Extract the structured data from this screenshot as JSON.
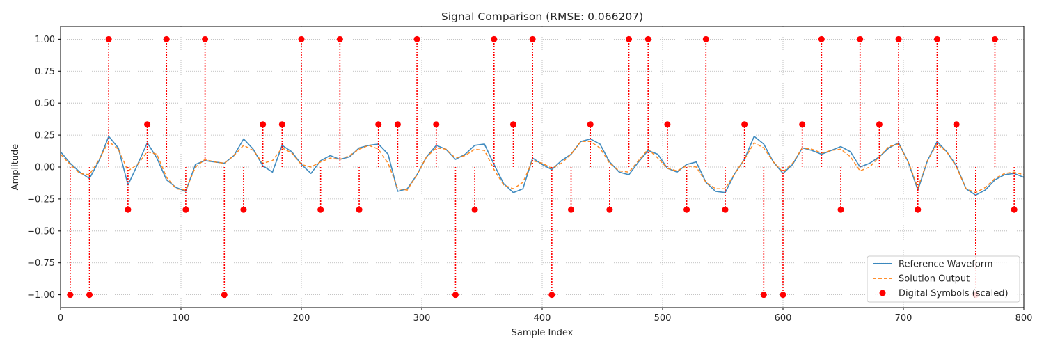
{
  "chart_data": {
    "type": "line",
    "title": "Signal Comparison (RMSE: 0.066207)",
    "xlabel": "Sample Index",
    "ylabel": "Amplitude",
    "xlim": [
      0,
      800
    ],
    "ylim": [
      -1.1,
      1.1
    ],
    "xticks": [
      0,
      100,
      200,
      300,
      400,
      500,
      600,
      700,
      800
    ],
    "xtick_labels": [
      "0",
      "100",
      "200",
      "300",
      "400",
      "500",
      "600",
      "700",
      "800"
    ],
    "yticks": [
      -1.0,
      -0.75,
      -0.5,
      -0.25,
      0.0,
      0.25,
      0.5,
      0.75,
      1.0
    ],
    "ytick_labels": [
      "−1.00",
      "−0.75",
      "−0.50",
      "−0.25",
      "0.00",
      "0.25",
      "0.50",
      "0.75",
      "1.00"
    ],
    "grid": true,
    "legend_position": "lower-right",
    "series": [
      {
        "name": "Reference Waveform",
        "style": "solid",
        "color": "#1f77b4",
        "x": [
          0,
          8,
          16,
          24,
          32,
          40,
          48,
          56,
          64,
          72,
          80,
          88,
          96,
          104,
          112,
          120,
          128,
          136,
          144,
          152,
          160,
          168,
          176,
          184,
          192,
          200,
          208,
          216,
          224,
          232,
          240,
          248,
          256,
          264,
          272,
          280,
          288,
          296,
          304,
          312,
          320,
          328,
          336,
          344,
          352,
          360,
          368,
          376,
          384,
          392,
          400,
          408,
          416,
          424,
          432,
          440,
          448,
          456,
          464,
          472,
          480,
          488,
          496,
          504,
          512,
          520,
          528,
          536,
          544,
          552,
          560,
          568,
          576,
          584,
          592,
          600,
          608,
          616,
          624,
          632,
          640,
          648,
          656,
          664,
          672,
          680,
          688,
          696,
          704,
          712,
          720,
          728,
          736,
          744,
          752,
          760,
          768,
          776,
          784,
          792,
          800
        ],
        "y": [
          0.12,
          0.03,
          -0.04,
          -0.09,
          0.05,
          0.24,
          0.15,
          -0.14,
          0.02,
          0.19,
          0.07,
          -0.1,
          -0.16,
          -0.19,
          0.02,
          0.05,
          0.04,
          0.03,
          0.09,
          0.22,
          0.14,
          0.01,
          -0.04,
          0.17,
          0.12,
          0.02,
          -0.05,
          0.05,
          0.09,
          0.06,
          0.08,
          0.15,
          0.17,
          0.18,
          0.1,
          -0.19,
          -0.17,
          -0.06,
          0.08,
          0.17,
          0.14,
          0.06,
          0.1,
          0.17,
          0.18,
          0.02,
          -0.13,
          -0.2,
          -0.17,
          0.07,
          0.02,
          -0.02,
          0.05,
          0.1,
          0.2,
          0.22,
          0.18,
          0.04,
          -0.04,
          -0.06,
          0.04,
          0.13,
          0.1,
          -0.01,
          -0.04,
          0.02,
          0.04,
          -0.12,
          -0.19,
          -0.2,
          -0.05,
          0.06,
          0.24,
          0.18,
          0.04,
          -0.05,
          0.02,
          0.15,
          0.13,
          0.1,
          0.13,
          0.16,
          0.12,
          0.0,
          0.03,
          0.08,
          0.15,
          0.19,
          0.04,
          -0.18,
          0.05,
          0.2,
          0.12,
          0.01,
          -0.17,
          -0.22,
          -0.18,
          -0.1,
          -0.06,
          -0.05,
          -0.08
        ]
      },
      {
        "name": "Solution Output",
        "style": "dashed",
        "color": "#ff7f0e",
        "x": [
          0,
          8,
          16,
          24,
          32,
          40,
          48,
          56,
          64,
          72,
          80,
          88,
          96,
          104,
          112,
          120,
          128,
          136,
          144,
          152,
          160,
          168,
          176,
          184,
          192,
          200,
          208,
          216,
          224,
          232,
          240,
          248,
          256,
          264,
          272,
          280,
          288,
          296,
          304,
          312,
          320,
          328,
          336,
          344,
          352,
          360,
          368,
          376,
          384,
          392,
          400,
          408,
          416,
          424,
          432,
          440,
          448,
          456,
          464,
          472,
          480,
          488,
          496,
          504,
          512,
          520,
          528,
          536,
          544,
          552,
          560,
          568,
          576,
          584,
          592,
          600,
          608,
          616,
          624,
          632,
          640,
          648,
          656,
          664,
          672,
          680,
          688,
          696,
          704,
          712,
          720,
          728,
          736,
          744,
          752,
          760,
          768,
          776,
          784,
          792,
          800
        ],
        "y": [
          0.1,
          0.02,
          -0.05,
          -0.06,
          0.06,
          0.2,
          0.14,
          -0.03,
          0.02,
          0.12,
          0.1,
          -0.08,
          -0.17,
          -0.18,
          0.0,
          0.06,
          0.04,
          0.03,
          0.09,
          0.17,
          0.13,
          0.03,
          0.05,
          0.15,
          0.11,
          0.02,
          0.0,
          0.04,
          0.07,
          0.06,
          0.09,
          0.14,
          0.17,
          0.14,
          0.03,
          -0.17,
          -0.18,
          -0.06,
          0.08,
          0.15,
          0.14,
          0.07,
          0.09,
          0.14,
          0.13,
          -0.02,
          -0.14,
          -0.17,
          -0.12,
          0.05,
          0.03,
          -0.01,
          0.03,
          0.1,
          0.2,
          0.2,
          0.15,
          0.03,
          -0.03,
          -0.04,
          0.05,
          0.14,
          0.07,
          -0.01,
          -0.03,
          0.01,
          0.0,
          -0.12,
          -0.17,
          -0.17,
          -0.05,
          0.06,
          0.19,
          0.15,
          0.04,
          -0.04,
          0.03,
          0.15,
          0.14,
          0.11,
          0.13,
          0.14,
          0.08,
          -0.03,
          0.0,
          0.08,
          0.16,
          0.18,
          0.04,
          -0.16,
          0.05,
          0.18,
          0.12,
          0.0,
          -0.17,
          -0.2,
          -0.16,
          -0.09,
          -0.05,
          -0.04,
          -0.06
        ]
      },
      {
        "name": "Digital Symbols (scaled)",
        "style": "stem",
        "color": "#ff0000",
        "x": [
          8,
          24,
          40,
          56,
          72,
          88,
          104,
          120,
          136,
          152,
          168,
          184,
          200,
          216,
          232,
          248,
          264,
          280,
          296,
          312,
          328,
          344,
          360,
          376,
          392,
          408,
          424,
          440,
          456,
          472,
          488,
          504,
          520,
          536,
          552,
          568,
          584,
          600,
          616,
          632,
          648,
          664,
          680,
          696,
          712,
          728,
          744,
          760,
          776,
          792
        ],
        "y": [
          -1.0,
          -1.0,
          1.0,
          -0.3333,
          0.3333,
          1.0,
          -0.3333,
          1.0,
          -1.0,
          -0.3333,
          0.3333,
          0.3333,
          1.0,
          -0.3333,
          1.0,
          -0.3333,
          0.3333,
          0.3333,
          1.0,
          0.3333,
          -1.0,
          -0.3333,
          1.0,
          0.3333,
          1.0,
          -1.0,
          -0.3333,
          0.3333,
          -0.3333,
          1.0,
          1.0,
          0.3333,
          -0.3333,
          1.0,
          -0.3333,
          0.3333,
          -1.0,
          -1.0,
          0.3333,
          1.0,
          -0.3333,
          1.0,
          0.3333,
          1.0,
          -0.3333,
          1.0,
          0.3333,
          -1.0,
          1.0,
          -0.3333
        ]
      }
    ]
  }
}
